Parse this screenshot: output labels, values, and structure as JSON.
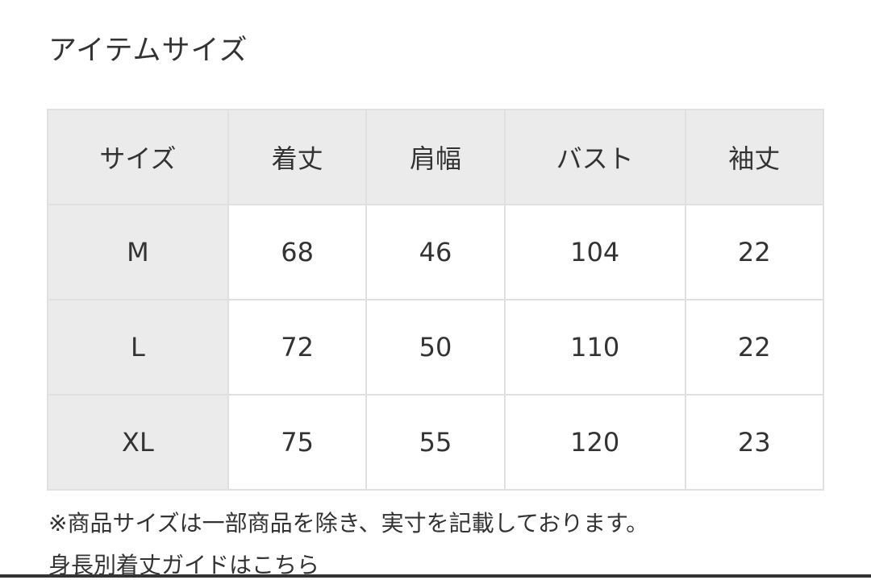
{
  "title": "アイテムサイズ",
  "table": {
    "headers": [
      "サイズ",
      "着丈",
      "肩幅",
      "バスト",
      "袖丈"
    ],
    "rows": [
      [
        "M",
        "68",
        "46",
        "104",
        "22"
      ],
      [
        "L",
        "72",
        "50",
        "110",
        "22"
      ],
      [
        "XL",
        "75",
        "55",
        "120",
        "23"
      ]
    ]
  },
  "note": "※商品サイズは一部商品を除き、実寸を記載しております。",
  "guide_link": "身長別着丈ガイドはこちら"
}
